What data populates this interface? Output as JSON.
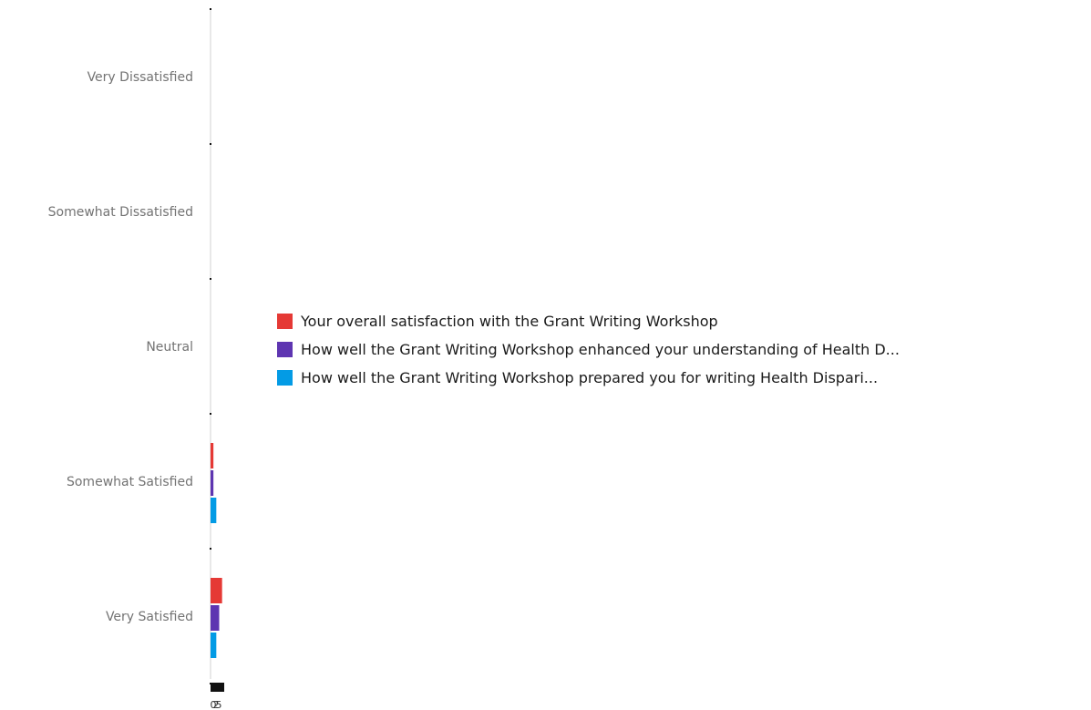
{
  "chart_data": {
    "type": "bar",
    "orientation": "horizontal",
    "categories": [
      "Very Dissatisfied",
      "Somewhat Dissatisfied",
      "Neutral",
      "Somewhat Satisfied",
      "Very Satisfied"
    ],
    "series": [
      {
        "name": "Your overall satisfaction with the Grant Writing Workshop",
        "color": "#e53935",
        "values": [
          0,
          0,
          0,
          1,
          4
        ]
      },
      {
        "name": "How well the Grant Writing Workshop enhanced your understanding of Health D...",
        "color": "#5e35b1",
        "values": [
          0,
          0,
          0,
          1,
          3
        ]
      },
      {
        "name": "How well the Grant Writing Workshop prepared you for writing Health Dispari...",
        "color": "#039be5",
        "values": [
          0,
          0,
          0,
          2,
          2
        ]
      }
    ],
    "x_ticks": [
      "0",
      "2",
      "5"
    ],
    "xlim": [
      0,
      300
    ],
    "grid": false,
    "legend_position": "right"
  }
}
